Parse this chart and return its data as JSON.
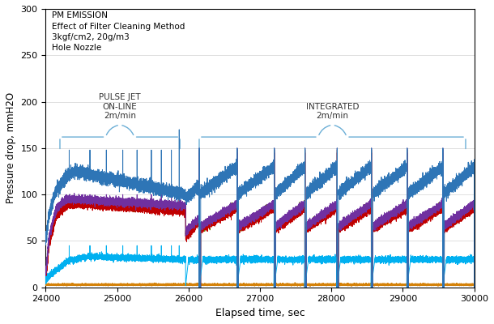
{
  "title_lines": [
    "PM EMISSION",
    "Effect of Filter Cleaning Method",
    "3kgf/cm2, 20g/m3",
    "Hole Nozzle"
  ],
  "xlabel": "Elapsed time, sec",
  "ylabel": "Pressure drop, mmH2O",
  "xlim": [
    24000,
    30000
  ],
  "ylim": [
    0,
    300
  ],
  "yticks": [
    0,
    50,
    100,
    150,
    200,
    250,
    300
  ],
  "xticks": [
    24000,
    25000,
    26000,
    27000,
    28000,
    29000,
    30000
  ],
  "annotation_left_text": "PULSE JET\nON-LINE\n2m/min",
  "annotation_right_text": "INTEGRATED\n2m/min",
  "colors": {
    "blue": "#2E75B6",
    "purple": "#7030A0",
    "olive": "#6B7A00",
    "red": "#C00000",
    "cyan": "#00B0F0",
    "orange": "#D4820A"
  },
  "phase_change": 25960,
  "phase1_spikes": [
    24330,
    24620,
    24850,
    25080,
    25280,
    25480,
    25620,
    25760,
    25870
  ],
  "phase2_spikes": [
    26150,
    26680,
    27200,
    27630,
    28080,
    28560,
    29060,
    29560
  ],
  "figsize": [
    6.1,
    4.0
  ],
  "dpi": 100
}
